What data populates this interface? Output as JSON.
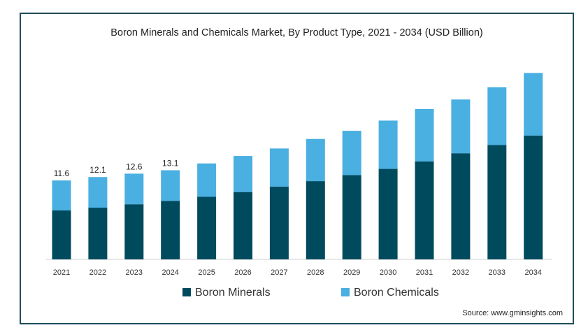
{
  "title": "Boron Minerals and Chemicals  Market, By Product Type, 2021 - 2034 (USD Billion)",
  "source": "Source: www.gminsights.com",
  "colors": {
    "minerals": "#004a5e",
    "chemicals": "#4aafe1",
    "frame": "#1f4e5b"
  },
  "chart_data": {
    "type": "bar",
    "stacked": true,
    "categories": [
      "2021",
      "2022",
      "2023",
      "2024",
      "2025",
      "2026",
      "2027",
      "2028",
      "2029",
      "2030",
      "2031",
      "2032",
      "2033",
      "2034"
    ],
    "series": [
      {
        "name": "Boron Minerals",
        "values": [
          7.2,
          7.6,
          8.1,
          8.6,
          9.2,
          9.9,
          10.7,
          11.5,
          12.4,
          13.3,
          14.4,
          15.6,
          16.8,
          18.2
        ]
      },
      {
        "name": "Boron Chemicals",
        "values": [
          4.4,
          4.5,
          4.5,
          4.5,
          4.9,
          5.3,
          5.6,
          6.2,
          6.5,
          7.1,
          7.7,
          7.9,
          8.5,
          9.2
        ]
      }
    ],
    "data_labels": [
      "11.6",
      "12.1",
      "12.6",
      "13.1",
      "",
      "",
      "",
      "",
      "",
      "",
      "",
      "",
      "",
      ""
    ],
    "ylim": [
      0,
      30
    ],
    "xlabel": "",
    "ylabel": "",
    "legend": "bottom-center",
    "grid": false
  }
}
